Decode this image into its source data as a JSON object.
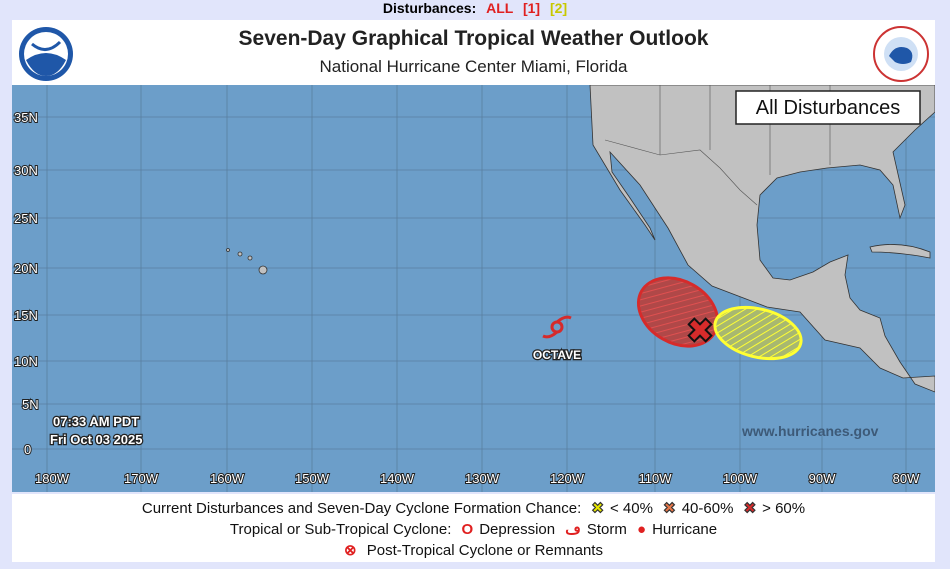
{
  "topbar": {
    "label": "Disturbances:",
    "links": [
      "ALL",
      "[1]",
      "[2]"
    ]
  },
  "header": {
    "title": "Seven-Day Graphical Tropical Weather Outlook",
    "subtitle": "National Hurricane Center  Miami, Florida",
    "logo_left": "NOAA",
    "logo_right": "NATIONAL WEATHER SERVICE"
  },
  "map": {
    "panel_label": "All Disturbances",
    "lat_labels": [
      "35N",
      "30N",
      "25N",
      "20N",
      "15N",
      "10N",
      "5N",
      "0"
    ],
    "lon_labels": [
      "180W",
      "170W",
      "160W",
      "150W",
      "140W",
      "130W",
      "120W",
      "110W",
      "100W",
      "90W",
      "80W"
    ],
    "timestamp": [
      "07:33 AM PDT",
      "Fri Oct 03 2025"
    ],
    "website": "www.hurricanes.gov",
    "storm": {
      "name": "OCTAVE",
      "type": "Storm"
    },
    "disturbances": [
      {
        "id": "1",
        "chance": "> 60%",
        "color": "#d62b2b"
      },
      {
        "id": "2",
        "chance": "< 40%",
        "color": "#ffff33"
      }
    ],
    "colors": {
      "ocean": "#6c9ec9",
      "land": "#c1c1c1",
      "high": "#d62b2b",
      "low": "#ffff33",
      "medium": "#e8784a"
    }
  },
  "legend": {
    "row1_label": "Current Disturbances and Seven-Day Cyclone Formation Chance:",
    "low": "< 40%",
    "medium": "40-60%",
    "high": "> 60%",
    "row2_label": "Tropical or Sub-Tropical Cyclone:",
    "depression": "Depression",
    "storm": "Storm",
    "hurricane": "Hurricane",
    "post_tropical": "Post-Tropical Cyclone or Remnants"
  }
}
